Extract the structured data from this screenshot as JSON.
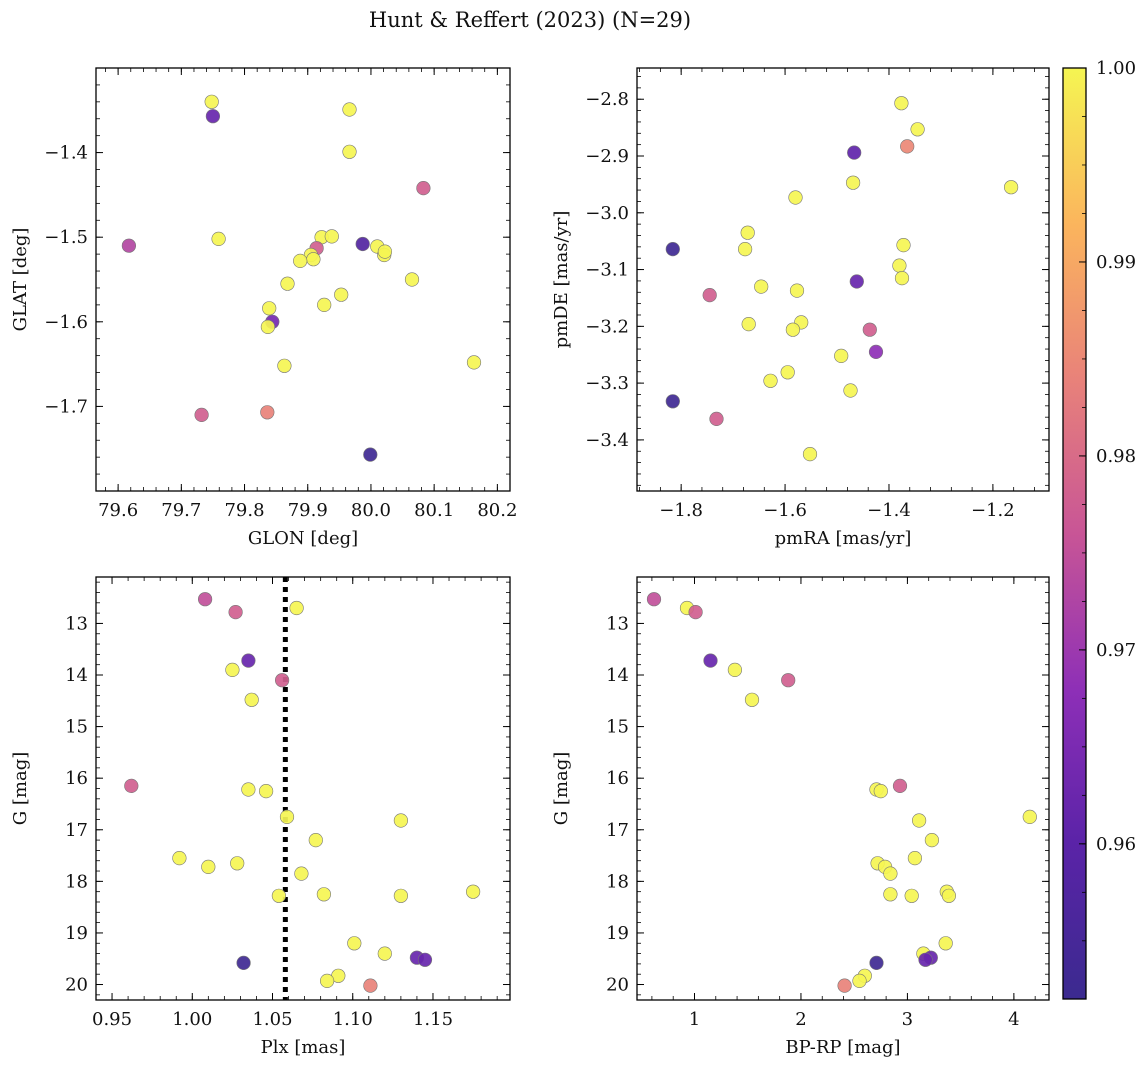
{
  "figure": {
    "title": "Hunt & Reffert (2023) (N=29)"
  },
  "colorbar": {
    "range": [
      0.952,
      1.0
    ],
    "ticks": [
      0.96,
      0.97,
      0.98,
      0.99,
      1.0
    ],
    "tick_labels": [
      "0.96",
      "0.97",
      "0.98",
      "0.99",
      "1.00"
    ],
    "colormap": "plasma"
  },
  "chart_data": [
    {
      "type": "scatter",
      "xlabel": "GLON [deg]",
      "ylabel": "GLAT [deg]",
      "xlim": [
        79.565,
        80.22
      ],
      "ylim": [
        -1.8,
        -1.3
      ],
      "xticks": [
        79.6,
        79.7,
        79.8,
        79.9,
        80.0,
        80.1,
        80.2
      ],
      "xtick_labels": [
        "79.6",
        "79.7",
        "79.8",
        "79.9",
        "80.0",
        "80.1",
        "80.2"
      ],
      "yticks": [
        -1.7,
        -1.6,
        -1.5,
        -1.4
      ],
      "ytick_labels": [
        "−1.7",
        "−1.6",
        "−1.5",
        "−1.4"
      ],
      "invert_y": false,
      "points": [
        {
          "x": 79.748,
          "y": -1.34,
          "c": 1.0
        },
        {
          "x": 79.75,
          "y": -1.357,
          "c": 0.962
        },
        {
          "x": 79.966,
          "y": -1.349,
          "c": 1.0
        },
        {
          "x": 79.966,
          "y": -1.399,
          "c": 1.0
        },
        {
          "x": 80.083,
          "y": -1.442,
          "c": 0.978
        },
        {
          "x": 79.617,
          "y": -1.51,
          "c": 0.973
        },
        {
          "x": 79.759,
          "y": -1.502,
          "c": 1.0
        },
        {
          "x": 79.922,
          "y": -1.5,
          "c": 1.0
        },
        {
          "x": 79.938,
          "y": -1.499,
          "c": 1.0
        },
        {
          "x": 79.914,
          "y": -1.513,
          "c": 0.978
        },
        {
          "x": 79.905,
          "y": -1.521,
          "c": 1.0
        },
        {
          "x": 79.909,
          "y": -1.526,
          "c": 1.0
        },
        {
          "x": 79.888,
          "y": -1.528,
          "c": 1.0
        },
        {
          "x": 79.987,
          "y": -1.508,
          "c": 0.958
        },
        {
          "x": 80.01,
          "y": -1.511,
          "c": 1.0
        },
        {
          "x": 80.021,
          "y": -1.521,
          "c": 1.0
        },
        {
          "x": 80.022,
          "y": -1.517,
          "c": 1.0
        },
        {
          "x": 80.065,
          "y": -1.55,
          "c": 1.0
        },
        {
          "x": 79.868,
          "y": -1.555,
          "c": 1.0
        },
        {
          "x": 79.953,
          "y": -1.568,
          "c": 1.0
        },
        {
          "x": 79.926,
          "y": -1.58,
          "c": 1.0
        },
        {
          "x": 79.839,
          "y": -1.584,
          "c": 1.0
        },
        {
          "x": 79.844,
          "y": -1.6,
          "c": 0.964
        },
        {
          "x": 79.837,
          "y": -1.606,
          "c": 1.0
        },
        {
          "x": 79.863,
          "y": -1.652,
          "c": 1.0
        },
        {
          "x": 80.163,
          "y": -1.648,
          "c": 1.0
        },
        {
          "x": 79.732,
          "y": -1.71,
          "c": 0.978
        },
        {
          "x": 79.836,
          "y": -1.707,
          "c": 0.984
        },
        {
          "x": 79.999,
          "y": -1.757,
          "c": 0.953
        }
      ]
    },
    {
      "type": "scatter",
      "xlabel": "pmRA [mas/yr]",
      "ylabel": "pmDE [mas/yr]",
      "xlim": [
        -1.885,
        -1.092
      ],
      "ylim": [
        -3.49,
        -2.745
      ],
      "xticks": [
        -1.8,
        -1.6,
        -1.4,
        -1.2
      ],
      "xtick_labels": [
        "−1.8",
        "−1.6",
        "−1.4",
        "−1.2"
      ],
      "yticks": [
        -3.4,
        -3.3,
        -3.2,
        -3.1,
        -3.0,
        -2.9,
        -2.8
      ],
      "ytick_labels": [
        "−3.4",
        "−3.3",
        "−3.2",
        "−3.1",
        "−3.0",
        "−2.9",
        "−2.8"
      ],
      "invert_y": false,
      "points": [
        {
          "x": -1.376,
          "y": -2.807,
          "c": 1.0
        },
        {
          "x": -1.345,
          "y": -2.853,
          "c": 1.0
        },
        {
          "x": -1.365,
          "y": -2.883,
          "c": 0.985
        },
        {
          "x": -1.467,
          "y": -2.894,
          "c": 0.961
        },
        {
          "x": -1.469,
          "y": -2.947,
          "c": 1.0
        },
        {
          "x": -1.165,
          "y": -2.955,
          "c": 1.0
        },
        {
          "x": -1.58,
          "y": -2.973,
          "c": 1.0
        },
        {
          "x": -1.672,
          "y": -3.035,
          "c": 1.0
        },
        {
          "x": -1.372,
          "y": -3.057,
          "c": 1.0
        },
        {
          "x": -1.816,
          "y": -3.064,
          "c": 0.953
        },
        {
          "x": -1.677,
          "y": -3.064,
          "c": 1.0
        },
        {
          "x": -1.38,
          "y": -3.093,
          "c": 1.0
        },
        {
          "x": -1.375,
          "y": -3.115,
          "c": 1.0
        },
        {
          "x": -1.462,
          "y": -3.121,
          "c": 0.962
        },
        {
          "x": -1.646,
          "y": -3.13,
          "c": 1.0
        },
        {
          "x": -1.577,
          "y": -3.137,
          "c": 1.0
        },
        {
          "x": -1.745,
          "y": -3.145,
          "c": 0.978
        },
        {
          "x": -1.67,
          "y": -3.196,
          "c": 1.0
        },
        {
          "x": -1.569,
          "y": -3.193,
          "c": 1.0
        },
        {
          "x": -1.585,
          "y": -3.206,
          "c": 1.0
        },
        {
          "x": -1.437,
          "y": -3.206,
          "c": 0.978
        },
        {
          "x": -1.425,
          "y": -3.245,
          "c": 0.968
        },
        {
          "x": -1.492,
          "y": -3.252,
          "c": 1.0
        },
        {
          "x": -1.595,
          "y": -3.281,
          "c": 1.0
        },
        {
          "x": -1.628,
          "y": -3.296,
          "c": 1.0
        },
        {
          "x": -1.474,
          "y": -3.313,
          "c": 1.0
        },
        {
          "x": -1.816,
          "y": -3.332,
          "c": 0.953
        },
        {
          "x": -1.732,
          "y": -3.363,
          "c": 0.978
        },
        {
          "x": -1.552,
          "y": -3.425,
          "c": 1.0
        }
      ]
    },
    {
      "type": "scatter",
      "xlabel": "Plx [mas]",
      "ylabel": "G [mag]",
      "xlim": [
        0.94,
        1.198
      ],
      "ylim": [
        12.1,
        20.3
      ],
      "xticks": [
        0.95,
        1.0,
        1.05,
        1.1,
        1.15
      ],
      "xtick_labels": [
        "0.95",
        "1.00",
        "1.05",
        "1.10",
        "1.15"
      ],
      "yticks": [
        13,
        14,
        15,
        16,
        17,
        18,
        19,
        20
      ],
      "ytick_labels": [
        "13",
        "14",
        "15",
        "16",
        "17",
        "18",
        "19",
        "20"
      ],
      "invert_y": true,
      "vline": {
        "x": 1.058,
        "style": "dotted",
        "color": "#000000"
      },
      "points": [
        {
          "x": 1.008,
          "y": 12.53,
          "c": 0.975
        },
        {
          "x": 1.027,
          "y": 12.78,
          "c": 0.978
        },
        {
          "x": 1.065,
          "y": 12.7,
          "c": 1.0
        },
        {
          "x": 1.035,
          "y": 13.72,
          "c": 0.962
        },
        {
          "x": 1.025,
          "y": 13.9,
          "c": 1.0
        },
        {
          "x": 1.056,
          "y": 14.1,
          "c": 0.978
        },
        {
          "x": 1.037,
          "y": 14.48,
          "c": 1.0
        },
        {
          "x": 0.962,
          "y": 16.15,
          "c": 0.978
        },
        {
          "x": 1.035,
          "y": 16.22,
          "c": 1.0
        },
        {
          "x": 1.046,
          "y": 16.25,
          "c": 1.0
        },
        {
          "x": 1.059,
          "y": 16.75,
          "c": 1.0
        },
        {
          "x": 1.13,
          "y": 16.82,
          "c": 1.0
        },
        {
          "x": 1.077,
          "y": 17.2,
          "c": 1.0
        },
        {
          "x": 0.992,
          "y": 17.55,
          "c": 1.0
        },
        {
          "x": 1.01,
          "y": 17.72,
          "c": 1.0
        },
        {
          "x": 1.028,
          "y": 17.65,
          "c": 1.0
        },
        {
          "x": 1.068,
          "y": 17.85,
          "c": 1.0
        },
        {
          "x": 1.054,
          "y": 18.28,
          "c": 1.0
        },
        {
          "x": 1.082,
          "y": 18.25,
          "c": 1.0
        },
        {
          "x": 1.13,
          "y": 18.28,
          "c": 1.0
        },
        {
          "x": 1.175,
          "y": 18.2,
          "c": 1.0
        },
        {
          "x": 1.101,
          "y": 19.2,
          "c": 1.0
        },
        {
          "x": 1.12,
          "y": 19.4,
          "c": 1.0
        },
        {
          "x": 1.14,
          "y": 19.48,
          "c": 0.962
        },
        {
          "x": 1.145,
          "y": 19.52,
          "c": 0.962
        },
        {
          "x": 1.032,
          "y": 19.58,
          "c": 0.953
        },
        {
          "x": 1.091,
          "y": 19.83,
          "c": 1.0
        },
        {
          "x": 1.084,
          "y": 19.93,
          "c": 1.0
        },
        {
          "x": 1.111,
          "y": 20.02,
          "c": 0.984
        }
      ]
    },
    {
      "type": "scatter",
      "xlabel": "BP-RP [mag]",
      "ylabel": "G [mag]",
      "xlim": [
        0.46,
        4.33
      ],
      "ylim": [
        12.1,
        20.3
      ],
      "xticks": [
        1,
        2,
        3,
        4
      ],
      "xtick_labels": [
        "1",
        "2",
        "3",
        "4"
      ],
      "yticks": [
        13,
        14,
        15,
        16,
        17,
        18,
        19,
        20
      ],
      "ytick_labels": [
        "13",
        "14",
        "15",
        "16",
        "17",
        "18",
        "19",
        "20"
      ],
      "invert_y": true,
      "points": [
        {
          "x": 0.62,
          "y": 12.53,
          "c": 0.975
        },
        {
          "x": 0.93,
          "y": 12.7,
          "c": 1.0
        },
        {
          "x": 1.01,
          "y": 12.78,
          "c": 0.978
        },
        {
          "x": 1.15,
          "y": 13.72,
          "c": 0.962
        },
        {
          "x": 1.38,
          "y": 13.9,
          "c": 1.0
        },
        {
          "x": 1.88,
          "y": 14.1,
          "c": 0.978
        },
        {
          "x": 1.54,
          "y": 14.48,
          "c": 1.0
        },
        {
          "x": 2.93,
          "y": 16.15,
          "c": 0.978
        },
        {
          "x": 2.71,
          "y": 16.22,
          "c": 1.0
        },
        {
          "x": 2.75,
          "y": 16.25,
          "c": 1.0
        },
        {
          "x": 4.15,
          "y": 16.75,
          "c": 1.0
        },
        {
          "x": 3.11,
          "y": 16.82,
          "c": 1.0
        },
        {
          "x": 3.23,
          "y": 17.2,
          "c": 1.0
        },
        {
          "x": 3.07,
          "y": 17.55,
          "c": 1.0
        },
        {
          "x": 2.72,
          "y": 17.65,
          "c": 1.0
        },
        {
          "x": 2.79,
          "y": 17.72,
          "c": 1.0
        },
        {
          "x": 2.84,
          "y": 17.85,
          "c": 1.0
        },
        {
          "x": 3.37,
          "y": 18.2,
          "c": 1.0
        },
        {
          "x": 2.84,
          "y": 18.25,
          "c": 1.0
        },
        {
          "x": 3.04,
          "y": 18.28,
          "c": 1.0
        },
        {
          "x": 3.39,
          "y": 18.28,
          "c": 1.0
        },
        {
          "x": 3.36,
          "y": 19.2,
          "c": 1.0
        },
        {
          "x": 3.15,
          "y": 19.4,
          "c": 1.0
        },
        {
          "x": 3.22,
          "y": 19.48,
          "c": 0.962
        },
        {
          "x": 3.17,
          "y": 19.52,
          "c": 0.962
        },
        {
          "x": 2.71,
          "y": 19.58,
          "c": 0.953
        },
        {
          "x": 2.6,
          "y": 19.83,
          "c": 1.0
        },
        {
          "x": 2.55,
          "y": 19.93,
          "c": 1.0
        },
        {
          "x": 2.41,
          "y": 20.02,
          "c": 0.984
        }
      ]
    }
  ]
}
